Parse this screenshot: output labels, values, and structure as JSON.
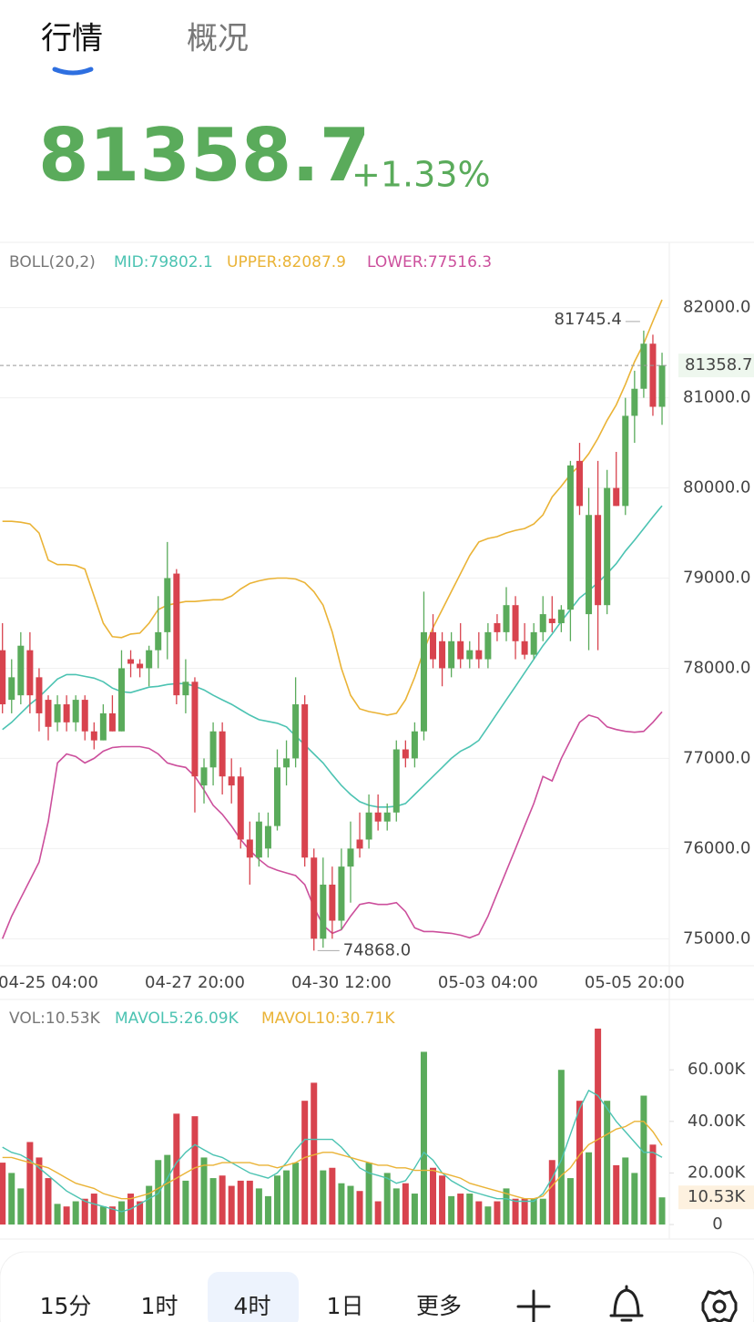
{
  "header": {
    "tabs": [
      "行情",
      "概况"
    ],
    "price": "81358.7",
    "change": "+1.33%"
  },
  "chart_data": [
    {
      "type": "candlestick",
      "indicator": "BOLL(20,2)",
      "categories": [
        null,
        null,
        null,
        null,
        null,
        "04-25 04:00",
        null,
        null,
        null,
        null,
        null,
        null,
        null,
        null,
        null,
        null,
        null,
        null,
        null,
        null,
        null,
        "04-27 20:00",
        null,
        null,
        null,
        null,
        null,
        null,
        null,
        null,
        null,
        null,
        null,
        null,
        null,
        null,
        null,
        "04-30 12:00",
        null,
        null,
        null,
        null,
        null,
        null,
        null,
        null,
        null,
        null,
        null,
        null,
        null,
        null,
        null,
        "05-03 04:00",
        null,
        null,
        null,
        null,
        null,
        null,
        null,
        null,
        null,
        null,
        null,
        null,
        null,
        null,
        null,
        "05-05 20:00",
        null,
        null,
        null
      ],
      "open": [
        78200,
        77650,
        77700,
        78200,
        77900,
        77650,
        77400,
        77600,
        77400,
        77650,
        77300,
        77200,
        77500,
        77300,
        78100,
        78050,
        78000,
        78200,
        78400,
        79050,
        77700,
        77850,
        76700,
        76900,
        77300,
        76800,
        76800,
        76100,
        75900,
        76000,
        76250,
        76900,
        77000,
        77600,
        75900,
        75000,
        75600,
        75200,
        75800,
        76100,
        76100,
        76400,
        76300,
        76400,
        77100,
        77000,
        77300,
        78400,
        78300,
        78000,
        78300,
        78100,
        78200,
        78100,
        78500,
        78400,
        78700,
        78300,
        78150,
        78400,
        78550,
        78500,
        78650,
        80300,
        78600,
        79700,
        78700,
        80000,
        79800,
        80800,
        81100,
        81600,
        80900
      ],
      "high": [
        78500,
        78100,
        78400,
        78400,
        78000,
        77700,
        77700,
        77700,
        77700,
        77700,
        77400,
        77600,
        77700,
        78200,
        78200,
        78100,
        78250,
        78800,
        79400,
        79100,
        78100,
        77900,
        77000,
        77400,
        77400,
        77000,
        76900,
        76300,
        76400,
        76400,
        77100,
        77200,
        77900,
        77700,
        76000,
        75900,
        75800,
        76000,
        76300,
        76400,
        76600,
        76600,
        76500,
        77200,
        77200,
        77400,
        78850,
        78600,
        78400,
        78400,
        78500,
        78300,
        78400,
        78500,
        78600,
        78900,
        78800,
        78500,
        78500,
        78800,
        78800,
        78700,
        80300,
        80500,
        80000,
        80300,
        80200,
        80400,
        81000,
        81300,
        81745.4,
        81700,
        81500
      ],
      "low": [
        77500,
        77500,
        77600,
        77500,
        77300,
        77200,
        77300,
        77300,
        77300,
        77200,
        77100,
        77200,
        77300,
        77300,
        77900,
        77900,
        77800,
        78000,
        78100,
        77600,
        77500,
        76400,
        76500,
        76700,
        76600,
        76500,
        76000,
        75600,
        75800,
        75900,
        76200,
        76700,
        76900,
        75800,
        74868,
        74900,
        75000,
        75100,
        75400,
        75900,
        76000,
        76200,
        76200,
        76300,
        76900,
        76900,
        77200,
        78000,
        77800,
        77900,
        78000,
        78000,
        78000,
        78000,
        78300,
        78300,
        78100,
        78100,
        78100,
        78300,
        78400,
        78400,
        78300,
        79700,
        78200,
        78200,
        78600,
        79800,
        79700,
        80500,
        81000,
        80800,
        80700
      ],
      "close": [
        77600,
        77900,
        78250,
        77700,
        77500,
        77350,
        77600,
        77400,
        77650,
        77300,
        77200,
        77500,
        77300,
        78000,
        78050,
        78000,
        78200,
        78400,
        79000,
        77700,
        77850,
        76800,
        76900,
        77300,
        76800,
        76700,
        76100,
        75900,
        76300,
        76250,
        76900,
        77000,
        77600,
        75900,
        75000,
        75600,
        75200,
        75800,
        76000,
        76000,
        76400,
        76300,
        76400,
        77100,
        77000,
        77300,
        78400,
        78100,
        78000,
        78300,
        78100,
        78200,
        78100,
        78400,
        78400,
        78700,
        78300,
        78150,
        78400,
        78600,
        78500,
        78650,
        80250,
        79800,
        79700,
        78700,
        80000,
        79800,
        80800,
        81100,
        81600,
        80900,
        81358.7
      ],
      "up_color": "#5aab5b",
      "down_color": "#d8434e",
      "series": [
        {
          "name": "MID:79802.1",
          "color": "#4cc3b2",
          "values": [
            77320,
            77400,
            77500,
            77600,
            77680,
            77780,
            77880,
            77930,
            77930,
            77910,
            77890,
            77850,
            77780,
            77740,
            77730,
            77760,
            77790,
            77800,
            77820,
            77830,
            77830,
            77800,
            77760,
            77700,
            77650,
            77600,
            77540,
            77480,
            77430,
            77410,
            77390,
            77350,
            77250,
            77150,
            77050,
            76950,
            76820,
            76700,
            76600,
            76520,
            76480,
            76460,
            76460,
            76470,
            76500,
            76600,
            76700,
            76800,
            76900,
            77000,
            77080,
            77130,
            77200,
            77350,
            77500,
            77650,
            77800,
            77950,
            78100,
            78250,
            78380,
            78520,
            78650,
            78780,
            78860,
            78950,
            79050,
            79160,
            79300,
            79420,
            79550,
            79680,
            79802.1
          ]
        },
        {
          "name": "UPPER:82087.9",
          "color": "#eab336",
          "values": [
            79630,
            79630,
            79620,
            79600,
            79500,
            79200,
            79150,
            79150,
            79140,
            79100,
            78800,
            78500,
            78350,
            78340,
            78380,
            78390,
            78500,
            78650,
            78700,
            78720,
            78740,
            78740,
            78750,
            78760,
            78760,
            78800,
            78880,
            78940,
            78970,
            78990,
            79000,
            79000,
            78990,
            78950,
            78850,
            78700,
            78400,
            78000,
            77700,
            77550,
            77520,
            77500,
            77480,
            77500,
            77650,
            77900,
            78200,
            78450,
            78650,
            78850,
            79050,
            79250,
            79400,
            79440,
            79460,
            79500,
            79530,
            79550,
            79600,
            79700,
            79900,
            80020,
            80150,
            80250,
            80380,
            80550,
            80750,
            80920,
            81150,
            81400,
            81600,
            81850,
            82087.9
          ]
        },
        {
          "name": "LOWER:77516.3",
          "color": "#cc4f9c",
          "values": [
            75000,
            75250,
            75450,
            75650,
            75850,
            76300,
            76950,
            77050,
            77020,
            76950,
            77000,
            77080,
            77120,
            77130,
            77130,
            77130,
            77110,
            77050,
            76950,
            76920,
            76900,
            76800,
            76650,
            76480,
            76380,
            76250,
            76100,
            75980,
            75880,
            75800,
            75760,
            75730,
            75700,
            75600,
            75350,
            75150,
            75060,
            75100,
            75250,
            75380,
            75400,
            75380,
            75380,
            75400,
            75300,
            75120,
            75080,
            75080,
            75070,
            75060,
            75040,
            75010,
            75050,
            75250,
            75500,
            75750,
            76000,
            76250,
            76500,
            76800,
            76750,
            77000,
            77200,
            77400,
            77480,
            77450,
            77350,
            77320,
            77300,
            77290,
            77300,
            77400,
            77516.3
          ]
        }
      ],
      "ylim": [
        74700,
        82330
      ],
      "yticks": [
        {
          "value": 75000,
          "label": "75000.0"
        },
        {
          "value": 76000,
          "label": "76000.0"
        },
        {
          "value": 77000,
          "label": "77000.0"
        },
        {
          "value": 78000,
          "label": "78000.0"
        },
        {
          "value": 79000,
          "label": "79000.0"
        },
        {
          "value": 80000,
          "label": "80000.0"
        },
        {
          "value": 81000,
          "label": "81000.0"
        },
        {
          "value": 82000,
          "label": "82000.0"
        }
      ],
      "last_price": 81358.7,
      "high_marker": 81745.4,
      "low_marker": {
        "value": 74868,
        "label": "74868.0"
      },
      "grid": true
    },
    {
      "type": "bar",
      "series": [
        {
          "name": "VOL:10.53K",
          "color": "#777777",
          "values": [
            24,
            20,
            14,
            32,
            26,
            18,
            8,
            7,
            9,
            10,
            12,
            7,
            7,
            9,
            12,
            9,
            15,
            25,
            27,
            43,
            17,
            42,
            26,
            18,
            19,
            15,
            17,
            17,
            14,
            11,
            19,
            21,
            24,
            48,
            55,
            21,
            22,
            16,
            15,
            13,
            24,
            9,
            20,
            14,
            16,
            12,
            67,
            22,
            19,
            11,
            12,
            12,
            9,
            7,
            9,
            14,
            10,
            10,
            10,
            10,
            25,
            60,
            18,
            48,
            28,
            76,
            48,
            23,
            26,
            20,
            50,
            31,
            10.53
          ]
        },
        {
          "name": "MAVOL5:26.09K",
          "color": "#4cc3b2",
          "values": [
            30,
            28,
            27,
            25,
            22,
            19,
            16,
            13,
            11,
            9,
            8,
            7,
            6,
            5,
            6,
            8,
            10,
            12,
            18,
            24,
            28,
            31,
            29,
            27,
            26,
            24,
            22,
            20,
            19,
            18,
            20,
            24,
            29,
            33,
            33,
            33,
            33,
            30,
            26,
            22,
            20,
            19,
            18,
            16,
            17,
            22,
            28,
            25,
            20,
            17,
            15,
            13,
            12,
            11,
            10,
            10,
            9,
            9,
            9,
            12,
            18,
            25,
            35,
            45,
            52,
            50,
            45,
            40,
            36,
            32,
            28,
            28,
            26.09
          ]
        },
        {
          "name": "MAVOL10:30.71K",
          "color": "#eab336",
          "values": [
            26,
            26,
            25,
            24,
            23,
            22,
            20,
            18,
            16,
            15,
            14,
            12,
            11,
            10,
            10,
            11,
            12,
            14,
            16,
            18,
            20,
            22,
            23,
            23,
            24,
            24,
            24,
            24,
            23,
            23,
            22,
            23,
            24,
            26,
            27,
            28,
            28,
            27,
            26,
            25,
            24,
            23,
            23,
            22,
            22,
            21,
            21,
            21,
            20,
            19,
            18,
            16,
            15,
            14,
            13,
            12,
            11,
            10,
            10,
            11,
            15,
            19,
            22,
            27,
            31,
            33,
            35,
            37,
            38,
            40,
            40,
            36,
            30.71
          ]
        }
      ],
      "ylim": [
        0,
        82
      ],
      "yticks": [
        0,
        {
          "value": 20,
          "label": "20.00K"
        },
        {
          "value": 40,
          "label": "40.00K"
        },
        {
          "value": 60,
          "label": "60.00K"
        }
      ],
      "last_value": {
        "value": 10.53,
        "label": "10.53K"
      }
    }
  ],
  "toolbar": [
    "15分",
    "1时",
    "4时",
    "1日",
    "更多"
  ]
}
